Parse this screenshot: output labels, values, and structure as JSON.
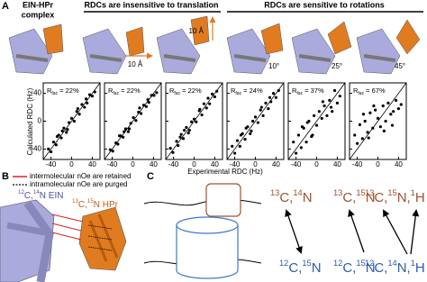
{
  "panel_a": {
    "label": "A",
    "header_complex": [
      "EIN-HPr",
      "complex"
    ],
    "header_translation": "RDCs are insensitive to translation",
    "header_rotation": "RDCs are sensitive to rotations",
    "shift_labels": [
      "10 Å",
      "10 Å"
    ],
    "angle_labels": [
      "10°",
      "25°",
      "45°"
    ],
    "y_axis_title": "Calculated RDC (Hz)",
    "x_axis_title": "Experimental RDC (Hz)"
  },
  "chart_data": [
    {
      "type": "scatter",
      "annotation": {
        "symbol": "R",
        "subscript": "fac",
        "text": " = 22%"
      },
      "x": [
        -45,
        -40,
        -35,
        -30,
        -25,
        -20,
        -15,
        -10,
        -5,
        0,
        5,
        10,
        15,
        20,
        25,
        30,
        35,
        40,
        45,
        -28,
        12,
        -8,
        28,
        -18
      ],
      "y": [
        -40,
        -44,
        -30,
        -34,
        -20,
        -24,
        -10,
        -16,
        -2,
        4,
        0,
        14,
        10,
        24,
        20,
        26,
        38,
        36,
        42,
        -22,
        18,
        -12,
        32,
        -14
      ],
      "xlim": [
        -55,
        55
      ],
      "ylim": [
        -55,
        55
      ],
      "xticks": [
        -40,
        0,
        40
      ],
      "yticks": [
        -40,
        0,
        40
      ]
    },
    {
      "type": "scatter",
      "annotation": {
        "symbol": "R",
        "subscript": "fac",
        "text": " = 22%"
      },
      "x": [
        -44,
        -39,
        -33,
        -29,
        -24,
        -19,
        -14,
        -9,
        -4,
        1,
        6,
        11,
        16,
        21,
        26,
        31,
        36,
        41,
        46,
        -26,
        13,
        -7,
        29,
        -17
      ],
      "y": [
        -41,
        -43,
        -31,
        -33,
        -21,
        -23,
        -11,
        -15,
        -3,
        5,
        1,
        13,
        11,
        23,
        21,
        27,
        37,
        37,
        41,
        -21,
        19,
        -11,
        31,
        -15
      ],
      "xlim": [
        -55,
        55
      ],
      "ylim": [
        -55,
        55
      ],
      "xticks": [
        -40,
        0,
        40
      ],
      "yticks": [
        -40,
        0,
        40
      ]
    },
    {
      "type": "scatter",
      "annotation": {
        "symbol": "R",
        "subscript": "fac",
        "text": " = 22%"
      },
      "x": [
        -46,
        -41,
        -34,
        -31,
        -25,
        -21,
        -15,
        -11,
        -5,
        0,
        4,
        10,
        15,
        19,
        24,
        30,
        35,
        40,
        44,
        -27,
        11,
        -9,
        27,
        -19
      ],
      "y": [
        -39,
        -45,
        -29,
        -35,
        -19,
        -25,
        -9,
        -17,
        -1,
        3,
        -1,
        15,
        9,
        25,
        19,
        25,
        39,
        35,
        43,
        -23,
        17,
        -13,
        33,
        -13
      ],
      "xlim": [
        -55,
        55
      ],
      "ylim": [
        -55,
        55
      ],
      "xticks": [
        -40,
        0,
        40
      ],
      "yticks": [
        -40,
        0,
        40
      ]
    },
    {
      "type": "scatter",
      "annotation": {
        "symbol": "R",
        "subscript": "fac",
        "text": " = 24%"
      },
      "x": [
        -45,
        -40,
        -35,
        -30,
        -25,
        -20,
        -15,
        -10,
        -5,
        0,
        5,
        10,
        15,
        20,
        25,
        30,
        35,
        40,
        45,
        -28,
        12,
        -8,
        28,
        -18
      ],
      "y": [
        -36,
        -46,
        -28,
        -36,
        -18,
        -26,
        -8,
        -18,
        0,
        6,
        -2,
        16,
        8,
        26,
        18,
        28,
        40,
        34,
        44,
        -20,
        20,
        -14,
        34,
        -10
      ],
      "xlim": [
        -55,
        55
      ],
      "ylim": [
        -55,
        55
      ],
      "xticks": [
        -40,
        0,
        40
      ],
      "yticks": [
        -40,
        0,
        40
      ]
    },
    {
      "type": "scatter",
      "annotation": {
        "symbol": "R",
        "subscript": "fac",
        "text": " = 37%"
      },
      "x": [
        -45,
        -40,
        -35,
        -30,
        -25,
        -20,
        -15,
        -10,
        -5,
        0,
        5,
        10,
        15,
        20,
        25,
        30,
        35,
        40,
        45,
        -28,
        12,
        -8,
        28,
        -18
      ],
      "y": [
        -30,
        -46,
        -20,
        -38,
        -10,
        -30,
        0,
        -22,
        8,
        -6,
        14,
        4,
        22,
        8,
        30,
        14,
        44,
        26,
        36,
        -8,
        28,
        -20,
        20,
        -2
      ],
      "xlim": [
        -55,
        55
      ],
      "ylim": [
        -55,
        55
      ],
      "xticks": [
        -40,
        0,
        40
      ],
      "yticks": [
        -40,
        0,
        40
      ]
    },
    {
      "type": "scatter",
      "annotation": {
        "symbol": "R",
        "subscript": "fac",
        "text": " = 67%"
      },
      "x": [
        -45,
        -40,
        -35,
        -30,
        -25,
        -20,
        -15,
        -10,
        -5,
        0,
        5,
        10,
        15,
        20,
        25,
        30,
        35,
        40,
        45,
        -28,
        12,
        -8,
        28,
        -18
      ],
      "y": [
        -20,
        -32,
        -5,
        -25,
        0,
        -16,
        12,
        -10,
        16,
        4,
        -8,
        22,
        0,
        26,
        10,
        14,
        30,
        18,
        24,
        10,
        -14,
        22,
        -6,
        -24
      ],
      "xlim": [
        -55,
        55
      ],
      "ylim": [
        -55,
        55
      ],
      "xticks": [
        -40,
        0,
        40
      ],
      "yticks": [
        -40,
        0,
        40
      ]
    }
  ],
  "panel_b": {
    "label": "B",
    "legend": [
      "intermolecular nOe are retained",
      "intramolecular nOe are purged"
    ],
    "ein_label": {
      "parts": [
        "12",
        "C,",
        "14",
        "N EIN"
      ]
    },
    "hpr_label": {
      "parts": [
        "13",
        "C,",
        "15",
        "N HPr"
      ]
    }
  },
  "panel_c": {
    "label": "C",
    "top_labels": [
      {
        "parts": [
          "13",
          "C,",
          "14",
          "N"
        ]
      },
      {
        "parts": [
          "13",
          "C,",
          "15",
          "N"
        ]
      },
      {
        "parts": [
          "13",
          "C,",
          "15",
          "N,",
          "1",
          "H"
        ]
      }
    ],
    "bottom_labels": [
      {
        "parts": [
          "12",
          "C,",
          "15",
          "N"
        ]
      },
      {
        "parts": [
          "12",
          "C,",
          "15",
          "N"
        ]
      },
      {
        "parts": [
          "12",
          "C,",
          "14",
          "N,",
          "1",
          "H"
        ]
      }
    ]
  }
}
